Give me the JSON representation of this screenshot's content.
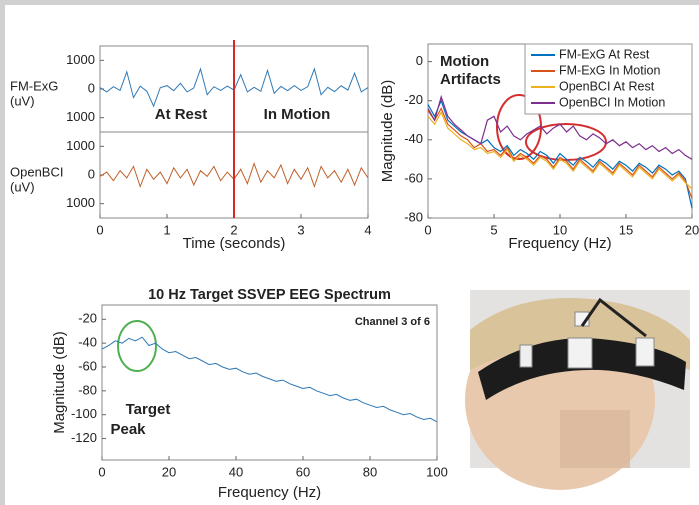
{
  "chart_data": [
    {
      "type": "line",
      "x": [
        0,
        0.1,
        0.2,
        0.3,
        0.4,
        0.5,
        0.6,
        0.7,
        0.8,
        0.9,
        1,
        1.1,
        1.2,
        1.3,
        1.4,
        1.5,
        1.6,
        1.7,
        1.8,
        1.9,
        2,
        2.1,
        2.2,
        2.3,
        2.4,
        2.5,
        2.6,
        2.7,
        2.8,
        2.9,
        3,
        3.1,
        3.2,
        3.3,
        3.4,
        3.5,
        3.6,
        3.7,
        3.8,
        3.9,
        4
      ],
      "xlim": [
        0,
        4
      ],
      "xticks": [
        0,
        1,
        2,
        3,
        4
      ],
      "xlabel": "Time (seconds)",
      "vline": 2,
      "vline_color": "#d62728",
      "annotations": [
        "At Rest",
        "In Motion"
      ],
      "annotation_color": "#d32f2f",
      "panels": [
        {
          "ylabel": [
            "FM-ExG",
            "(uV)"
          ],
          "color": "#2f78b5",
          "ylim": [
            -1500,
            1500
          ],
          "yticks": [
            {
              "value": -1000,
              "label": "1000"
            },
            0,
            1000
          ],
          "values": [
            50,
            -100,
            80,
            -50,
            600,
            -300,
            100,
            -80,
            -600,
            50,
            120,
            -60,
            200,
            -100,
            40,
            700,
            -200,
            80,
            -50,
            100,
            -40,
            500,
            -100,
            60,
            -80,
            650,
            -150,
            90,
            -60,
            120,
            -50,
            80,
            700,
            -200,
            60,
            -90,
            110,
            -40,
            550,
            -100,
            50
          ]
        },
        {
          "ylabel": [
            "OpenBCI",
            "(uV)"
          ],
          "color": "#c0602a",
          "ylim": [
            -1500,
            1500
          ],
          "yticks": [
            {
              "value": -1000,
              "label": "1000"
            },
            0,
            1000
          ],
          "values": [
            -50,
            100,
            -200,
            150,
            -100,
            300,
            -400,
            200,
            -150,
            100,
            -300,
            250,
            -100,
            200,
            -350,
            150,
            -50,
            300,
            -200,
            100,
            -150,
            200,
            -300,
            400,
            -250,
            150,
            -100,
            350,
            -300,
            200,
            -150,
            250,
            -400,
            300,
            -100,
            150,
            -250,
            200,
            -350,
            250,
            -100
          ]
        }
      ]
    },
    {
      "type": "line",
      "x": [
        0,
        0.5,
        1,
        1.5,
        2,
        2.5,
        3,
        3.5,
        4,
        4.5,
        5,
        5.5,
        6,
        6.5,
        7,
        7.5,
        8,
        8.5,
        9,
        9.5,
        10,
        10.5,
        11,
        11.5,
        12,
        12.5,
        13,
        13.5,
        14,
        14.5,
        15,
        15.5,
        16,
        16.5,
        17,
        17.5,
        18,
        18.5,
        19,
        19.5,
        20
      ],
      "xlim": [
        0,
        20
      ],
      "xticks": [
        0,
        5,
        10,
        15,
        20
      ],
      "ylim": [
        -80,
        9
      ],
      "yticks": [
        -80,
        -60,
        -40,
        -20,
        0
      ],
      "xlabel": "Frequency (Hz)",
      "ylabel": "Magnitude (dB)",
      "legend": "upper right",
      "annotations": [
        "Motion",
        "Artifacts"
      ],
      "annotation_color": "#d32f2f",
      "series": [
        {
          "name": "FM-ExG At Rest",
          "color": "#0072bd",
          "values": [
            -22,
            -28,
            -20,
            -30,
            -33,
            -36,
            -38,
            -40,
            -42,
            -40,
            -44,
            -46,
            -43,
            -48,
            -45,
            -47,
            -50,
            -46,
            -48,
            -52,
            -47,
            -50,
            -53,
            -49,
            -51,
            -54,
            -50,
            -52,
            -55,
            -51,
            -53,
            -56,
            -52,
            -54,
            -57,
            -53,
            -55,
            -58,
            -56,
            -60,
            -75
          ]
        },
        {
          "name": "FM-ExG In Motion",
          "color": "#d95319",
          "values": [
            -25,
            -30,
            -24,
            -32,
            -35,
            -38,
            -40,
            -44,
            -42,
            -46,
            -45,
            -48,
            -44,
            -50,
            -47,
            -49,
            -52,
            -48,
            -50,
            -54,
            -49,
            -51,
            -55,
            -50,
            -53,
            -56,
            -51,
            -54,
            -57,
            -52,
            -55,
            -58,
            -53,
            -56,
            -59,
            -54,
            -57,
            -60,
            -57,
            -61,
            -70
          ]
        },
        {
          "name": "OpenBCI At Rest",
          "color": "#edb120",
          "values": [
            -28,
            -32,
            -26,
            -34,
            -37,
            -40,
            -42,
            -45,
            -44,
            -47,
            -46,
            -49,
            -45,
            -51,
            -48,
            -50,
            -53,
            -49,
            -51,
            -55,
            -50,
            -52,
            -56,
            -51,
            -54,
            -57,
            -52,
            -55,
            -58,
            -53,
            -56,
            -59,
            -54,
            -57,
            -60,
            -55,
            -58,
            -61,
            -58,
            -62,
            -65
          ]
        },
        {
          "name": "OpenBCI In Motion",
          "color": "#7e2f8e",
          "values": [
            -24,
            -30,
            -18,
            -28,
            -32,
            -35,
            -38,
            -40,
            -42,
            -30,
            -28,
            -36,
            -33,
            -38,
            -40,
            -37,
            -35,
            -33,
            -37,
            -34,
            -32,
            -36,
            -33,
            -38,
            -40,
            -37,
            -39,
            -42,
            -40,
            -43,
            -41,
            -44,
            -42,
            -45,
            -43,
            -46,
            -44,
            -47,
            -45,
            -48,
            -50
          ]
        }
      ]
    },
    {
      "type": "line",
      "title": "10 Hz Target SSVEP EEG Spectrum",
      "x": [
        0,
        2,
        4,
        6,
        8,
        10,
        12,
        14,
        16,
        18,
        20,
        22,
        24,
        26,
        28,
        30,
        32,
        34,
        36,
        38,
        40,
        42,
        44,
        46,
        48,
        50,
        52,
        54,
        56,
        58,
        60,
        62,
        64,
        66,
        68,
        70,
        72,
        74,
        76,
        78,
        80,
        82,
        84,
        86,
        88,
        90,
        92,
        94,
        96,
        98,
        100
      ],
      "values": [
        -45,
        -42,
        -38,
        -40,
        -36,
        -38,
        -35,
        -42,
        -40,
        -45,
        -48,
        -47,
        -50,
        -53,
        -52,
        -55,
        -58,
        -57,
        -60,
        -62,
        -61,
        -64,
        -66,
        -65,
        -68,
        -70,
        -72,
        -71,
        -74,
        -76,
        -78,
        -77,
        -80,
        -82,
        -84,
        -83,
        -86,
        -88,
        -87,
        -90,
        -92,
        -94,
        -93,
        -96,
        -98,
        -100,
        -99,
        -102,
        -104,
        -103,
        -106
      ],
      "color": "#2f78b5",
      "xlim": [
        0,
        100
      ],
      "xticks": [
        0,
        20,
        40,
        60,
        80,
        100
      ],
      "ylim": [
        -138,
        -8
      ],
      "yticks": [
        -120,
        -100,
        -80,
        -60,
        -40,
        -20
      ],
      "xlabel": "Frequency (Hz)",
      "ylabel": "Magnitude (dB)",
      "annotations": [
        "Channel 3 of 6",
        "Target",
        "Peak"
      ],
      "annotation_colors": [
        "#111111",
        "#4caf50",
        "#4caf50"
      ]
    }
  ]
}
